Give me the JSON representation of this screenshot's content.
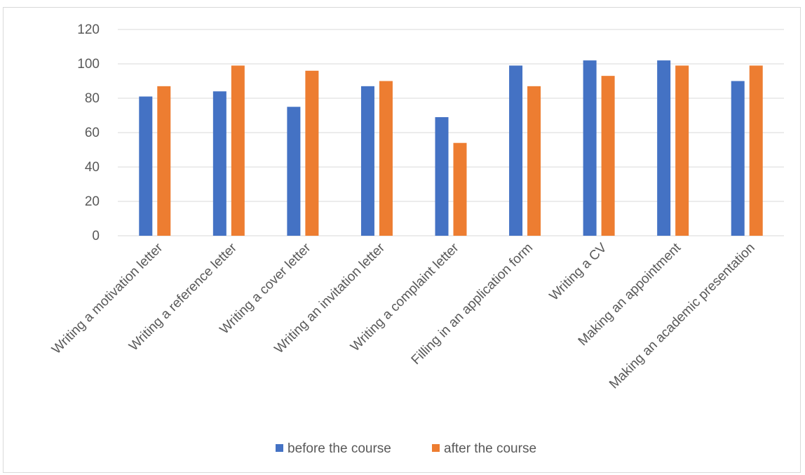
{
  "chart_data": {
    "type": "bar",
    "categories": [
      "Writing a motivation letter",
      "Writing a reference letter",
      "Writing a cover letter",
      "Writing an invitation letter",
      "Writing a complaint letter",
      "Filling in an application form",
      "Writing a CV",
      "Making an appointment",
      "Making an academic presentation"
    ],
    "series": [
      {
        "name": "before the course",
        "color": "#4472C4",
        "values": [
          81,
          84,
          75,
          87,
          69,
          99,
          102,
          102,
          90
        ]
      },
      {
        "name": "after the course",
        "color": "#ED7D31",
        "values": [
          87,
          99,
          96,
          90,
          54,
          87,
          93,
          99,
          99
        ]
      }
    ],
    "yticks": [
      0,
      20,
      40,
      60,
      80,
      100,
      120
    ],
    "ylim": [
      0,
      120
    ],
    "grid": true,
    "legend_position": "bottom"
  }
}
